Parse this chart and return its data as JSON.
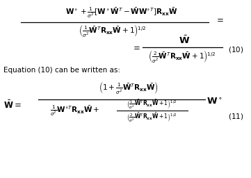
{
  "figsize": [
    3.61,
    2.56
  ],
  "dpi": 100,
  "eq10_num": "$\\mathbf{W}^\\circ + \\frac{1}{\\sigma^2}\\left[\\mathbf{W}^\\circ\\bar{\\mathbf{W}}^T - \\bar{\\mathbf{W}}\\mathbf{W}^{\\circ T}\\right]\\mathbf{R}_{\\mathbf{xx}}\\bar{\\mathbf{W}}$",
  "eq10_den": "$\\left(\\frac{1}{\\sigma^2}\\bar{\\mathbf{W}}^T\\mathbf{R}_{\\mathbf{xx}}\\bar{\\mathbf{W}}+1\\right)^{1/2}$",
  "eq10b_num": "$\\bar{\\mathbf{W}}$",
  "eq10b_den": "$\\left(\\frac{2}{\\sigma^2}\\bar{\\mathbf{W}}^T\\mathbf{R}_{\\mathbf{xx}}\\bar{\\mathbf{W}}+1\\right)^{1/2}$",
  "eq10_label": "$(10)$",
  "text_eq10": "Equation (10) can be written as:",
  "eq11_num": "$\\left(1+\\frac{1}{\\sigma^2}\\bar{\\mathbf{W}}^T\\mathbf{R}_{\\mathbf{xx}}\\bar{\\mathbf{W}}\\right)$",
  "eq11_lhs": "$\\bar{\\mathbf{W}}$",
  "eq11_den_left": "$\\frac{1}{\\sigma^2}\\mathbf{W}^{\\circ T}\\mathbf{R}_{\\mathbf{xx}}\\bar{\\mathbf{W}}$",
  "eq11_den_frac_num": "$\\left(\\frac{1}{\\sigma^2}\\bar{\\mathbf{W}}^T\\mathbf{R}_{\\mathbf{xx}}\\bar{\\mathbf{W}}+1\\right)^{1/2}$",
  "eq11_den_frac_den": "$\\left(\\frac{2}{\\sigma^2}\\bar{\\mathbf{W}}^T\\mathbf{R}_{\\mathbf{xx}}\\bar{\\mathbf{W}}+1\\right)^{1/2}$",
  "eq11_rhs": "$\\mathbf{W}^\\circ$",
  "eq11_label": "$(11)$"
}
